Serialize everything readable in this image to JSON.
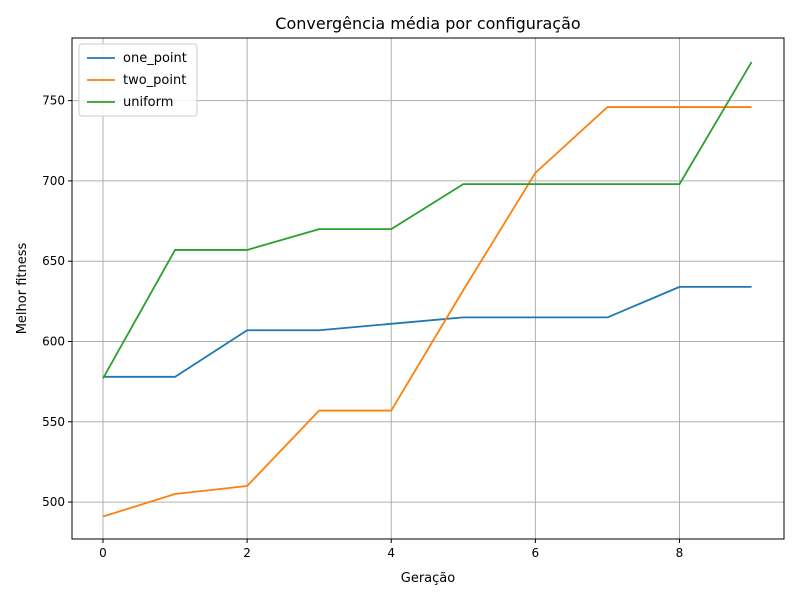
{
  "chart_data": {
    "type": "line",
    "title": "Convergência média por configuração",
    "xlabel": "Geração",
    "ylabel": "Melhor fitness",
    "x": [
      0,
      1,
      2,
      3,
      4,
      5,
      6,
      7,
      8,
      9
    ],
    "xlim": [
      -0.43,
      9.45
    ],
    "ylim": [
      477,
      789
    ],
    "xticks": [
      0,
      2,
      4,
      6,
      8
    ],
    "yticks": [
      500,
      550,
      600,
      650,
      700,
      750
    ],
    "grid": true,
    "legend_position": "top-left",
    "series": [
      {
        "name": "one_point",
        "color": "#1f77b4",
        "values": [
          578,
          578,
          607,
          607,
          611,
          615,
          615,
          615,
          634,
          634
        ]
      },
      {
        "name": "two_point",
        "color": "#ff7f0e",
        "values": [
          491,
          505,
          510,
          557,
          557,
          632,
          705,
          746,
          746,
          746
        ]
      },
      {
        "name": "uniform",
        "color": "#2ca02c",
        "values": [
          577,
          657,
          657,
          670,
          670,
          698,
          698,
          698,
          698,
          774
        ]
      }
    ]
  }
}
